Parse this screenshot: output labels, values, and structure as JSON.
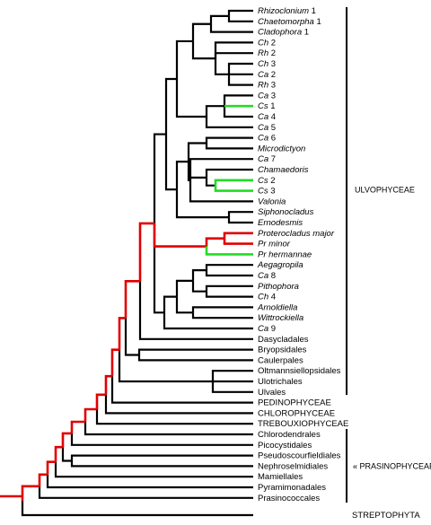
{
  "leaves": [
    {
      "taxon": "Rhizoclonium",
      "number": "1"
    },
    {
      "taxon": "Chaetomorpha",
      "number": "1"
    },
    {
      "taxon": "Cladophora",
      "number": "1"
    },
    {
      "taxon": "Ch",
      "number": "2"
    },
    {
      "taxon": "Rh",
      "number": "2"
    },
    {
      "taxon": "Ch",
      "number": "3"
    },
    {
      "taxon": "Ca",
      "number": "2"
    },
    {
      "taxon": "Rh",
      "number": "3"
    },
    {
      "taxon": "Ca",
      "number": "3"
    },
    {
      "taxon": "Cs",
      "number": "1"
    },
    {
      "taxon": "Ca",
      "number": "4"
    },
    {
      "taxon": "Ca",
      "number": "5"
    },
    {
      "taxon": "Ca",
      "number": "6"
    },
    {
      "taxon": "Microdictyon"
    },
    {
      "taxon": "Ca",
      "number": "7"
    },
    {
      "taxon": "Chamaedoris"
    },
    {
      "taxon": "Cs",
      "number": "2"
    },
    {
      "taxon": "Cs",
      "number": "3"
    },
    {
      "taxon": "Valonia"
    },
    {
      "taxon": "Siphonocladus"
    },
    {
      "taxon": "Ernodesmis"
    },
    {
      "taxon": "Proterocladus major"
    },
    {
      "taxon": "Pr  minor"
    },
    {
      "taxon": "Pr  hermannae"
    },
    {
      "taxon": "Aegagropila"
    },
    {
      "taxon": "Ca",
      "number": "8"
    },
    {
      "taxon": "Pithophora"
    },
    {
      "taxon": "Ch",
      "number": "4"
    },
    {
      "taxon": "Arnoldiella"
    },
    {
      "taxon": "Wittrockiella"
    },
    {
      "taxon": "Ca",
      "number": "9"
    },
    {
      "label": "Dasycladales"
    },
    {
      "label": "Bryopsidales"
    },
    {
      "label": "Caulerpales"
    },
    {
      "label": "Oltmannsiellopsidales"
    },
    {
      "label": "Ulotrichales"
    },
    {
      "label": "Ulvales"
    },
    {
      "label": "PEDINOPHYCEAE"
    },
    {
      "label": "CHLOROPHYCEAE"
    },
    {
      "label": "TREBOUXIOPHYCEAE"
    },
    {
      "label": "Chlorodendrales"
    },
    {
      "label": "Picocystidales"
    },
    {
      "label": "Pseudoscourfieldiales"
    },
    {
      "label": "Nephroselmidiales"
    },
    {
      "label": "Mamiellales"
    },
    {
      "label": "Pyramimonadales"
    },
    {
      "label": "Prasinococcales"
    },
    {
      "label": "STREPTOPHYTA"
    }
  ],
  "groups": [
    {
      "label": "ULVOPHYCEAE"
    },
    {
      "label": "« PRASINOPHYCEAE »"
    }
  ]
}
